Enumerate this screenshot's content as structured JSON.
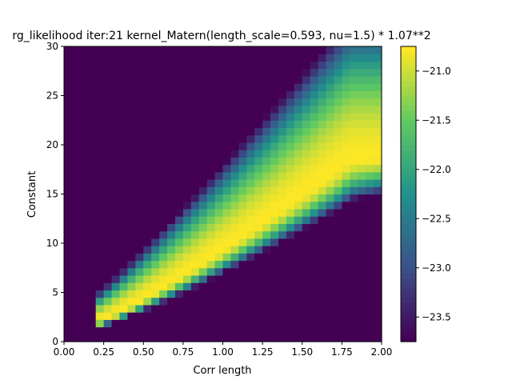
{
  "chart_data": {
    "type": "heatmap",
    "title": "rg_likelihood iter:21 kernel_Matern(length_scale=0.593, nu=1.5) * 1.07**2",
    "xlabel": "Corr length",
    "ylabel": "Constant",
    "xlim": [
      0.0,
      2.0
    ],
    "ylim": [
      0,
      30
    ],
    "x_ticks": [
      "0.00",
      "0.25",
      "0.50",
      "0.75",
      "1.00",
      "1.25",
      "1.50",
      "1.75",
      "2.00"
    ],
    "y_ticks": [
      "0",
      "5",
      "10",
      "15",
      "20",
      "25",
      "30"
    ],
    "colormap": "viridis",
    "colorbar": {
      "range": [
        -23.75,
        -20.75
      ],
      "ticks": [
        "−23.5",
        "−23.0",
        "−22.5",
        "−22.0",
        "−21.5",
        "−21.0"
      ]
    },
    "grid_resolution": [
      40,
      40
    ],
    "surface": {
      "ridge_center": {
        "corr_length": [
          0.3,
          0.6,
          1.0,
          1.4,
          1.7
        ],
        "constant": [
          3.0,
          5.5,
          9.5,
          14.5,
          17.0
        ]
      },
      "description_values": {
        "max_value": -20.75,
        "min_value": -23.75
      }
    }
  }
}
